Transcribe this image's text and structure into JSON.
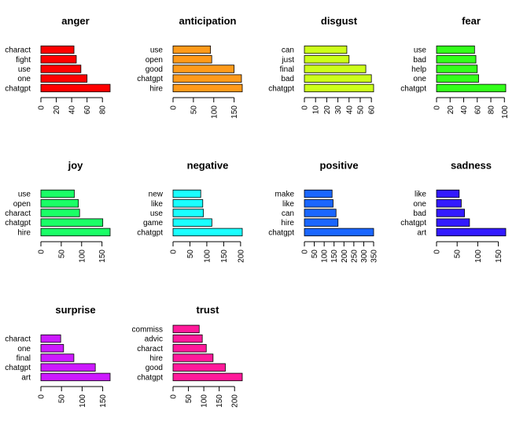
{
  "chart_data": [
    {
      "type": "bar",
      "orientation": "horizontal",
      "title": "anger",
      "color": "#ff0000",
      "categories": [
        "chatgpt",
        "one",
        "use",
        "fight",
        "charact"
      ],
      "values": [
        90,
        60,
        52,
        46,
        43
      ],
      "xlim": [
        0,
        90
      ],
      "xticks": [
        0,
        20,
        40,
        60,
        80
      ]
    },
    {
      "type": "bar",
      "orientation": "horizontal",
      "title": "anticipation",
      "color": "#ff9a1a",
      "categories": [
        "hire",
        "chatgpt",
        "good",
        "open",
        "use"
      ],
      "values": [
        170,
        168,
        150,
        95,
        92
      ],
      "xlim": [
        0,
        170
      ],
      "xticks": [
        0,
        50,
        100,
        150
      ]
    },
    {
      "type": "bar",
      "orientation": "horizontal",
      "title": "disgust",
      "color": "#ccff1a",
      "categories": [
        "chatgpt",
        "bad",
        "final",
        "just",
        "can"
      ],
      "values": [
        62,
        60,
        55,
        40,
        38
      ],
      "xlim": [
        0,
        62
      ],
      "xticks": [
        0,
        10,
        20,
        30,
        40,
        50,
        60
      ]
    },
    {
      "type": "bar",
      "orientation": "horizontal",
      "title": "fear",
      "color": "#33ff1a",
      "categories": [
        "chatgpt",
        "one",
        "help",
        "bad",
        "use"
      ],
      "values": [
        102,
        62,
        60,
        58,
        56
      ],
      "xlim": [
        0,
        102
      ],
      "xticks": [
        0,
        20,
        40,
        60,
        80,
        100
      ]
    },
    {
      "type": "bar",
      "orientation": "horizontal",
      "title": "joy",
      "color": "#1aff66",
      "categories": [
        "hire",
        "chatgpt",
        "charact",
        "open",
        "use"
      ],
      "values": [
        170,
        152,
        95,
        92,
        82
      ],
      "xlim": [
        0,
        170
      ],
      "xticks": [
        0,
        50,
        100,
        150
      ]
    },
    {
      "type": "bar",
      "orientation": "horizontal",
      "title": "negative",
      "color": "#1affff",
      "categories": [
        "chatgpt",
        "game",
        "use",
        "like",
        "new"
      ],
      "values": [
        205,
        115,
        90,
        88,
        82
      ],
      "xlim": [
        0,
        205
      ],
      "xticks": [
        0,
        50,
        100,
        150,
        200
      ]
    },
    {
      "type": "bar",
      "orientation": "horizontal",
      "title": "positive",
      "color": "#1a66ff",
      "categories": [
        "chatgpt",
        "hire",
        "can",
        "like",
        "make"
      ],
      "values": [
        350,
        170,
        160,
        145,
        140
      ],
      "xlim": [
        0,
        350
      ],
      "xticks": [
        0,
        50,
        100,
        150,
        200,
        250,
        300,
        350
      ]
    },
    {
      "type": "bar",
      "orientation": "horizontal",
      "title": "sadness",
      "color": "#331aff",
      "categories": [
        "art",
        "chatgpt",
        "bad",
        "one",
        "like"
      ],
      "values": [
        168,
        80,
        68,
        60,
        55
      ],
      "xlim": [
        0,
        168
      ],
      "xticks": [
        0,
        50,
        100,
        150
      ]
    },
    {
      "type": "bar",
      "orientation": "horizontal",
      "title": "surprise",
      "color": "#cc1aff",
      "categories": [
        "art",
        "chatgpt",
        "final",
        "one",
        "charact"
      ],
      "values": [
        168,
        132,
        80,
        55,
        48
      ],
      "xlim": [
        0,
        168
      ],
      "xticks": [
        0,
        50,
        100,
        150
      ]
    },
    {
      "type": "bar",
      "orientation": "horizontal",
      "title": "trust",
      "color": "#ff1a9a",
      "categories": [
        "chatgpt",
        "good",
        "hire",
        "charact",
        "advic",
        "commiss"
      ],
      "values": [
        225,
        170,
        130,
        108,
        95,
        85
      ],
      "xlim": [
        0,
        225
      ],
      "xticks": [
        0,
        50,
        100,
        150,
        200
      ]
    }
  ]
}
